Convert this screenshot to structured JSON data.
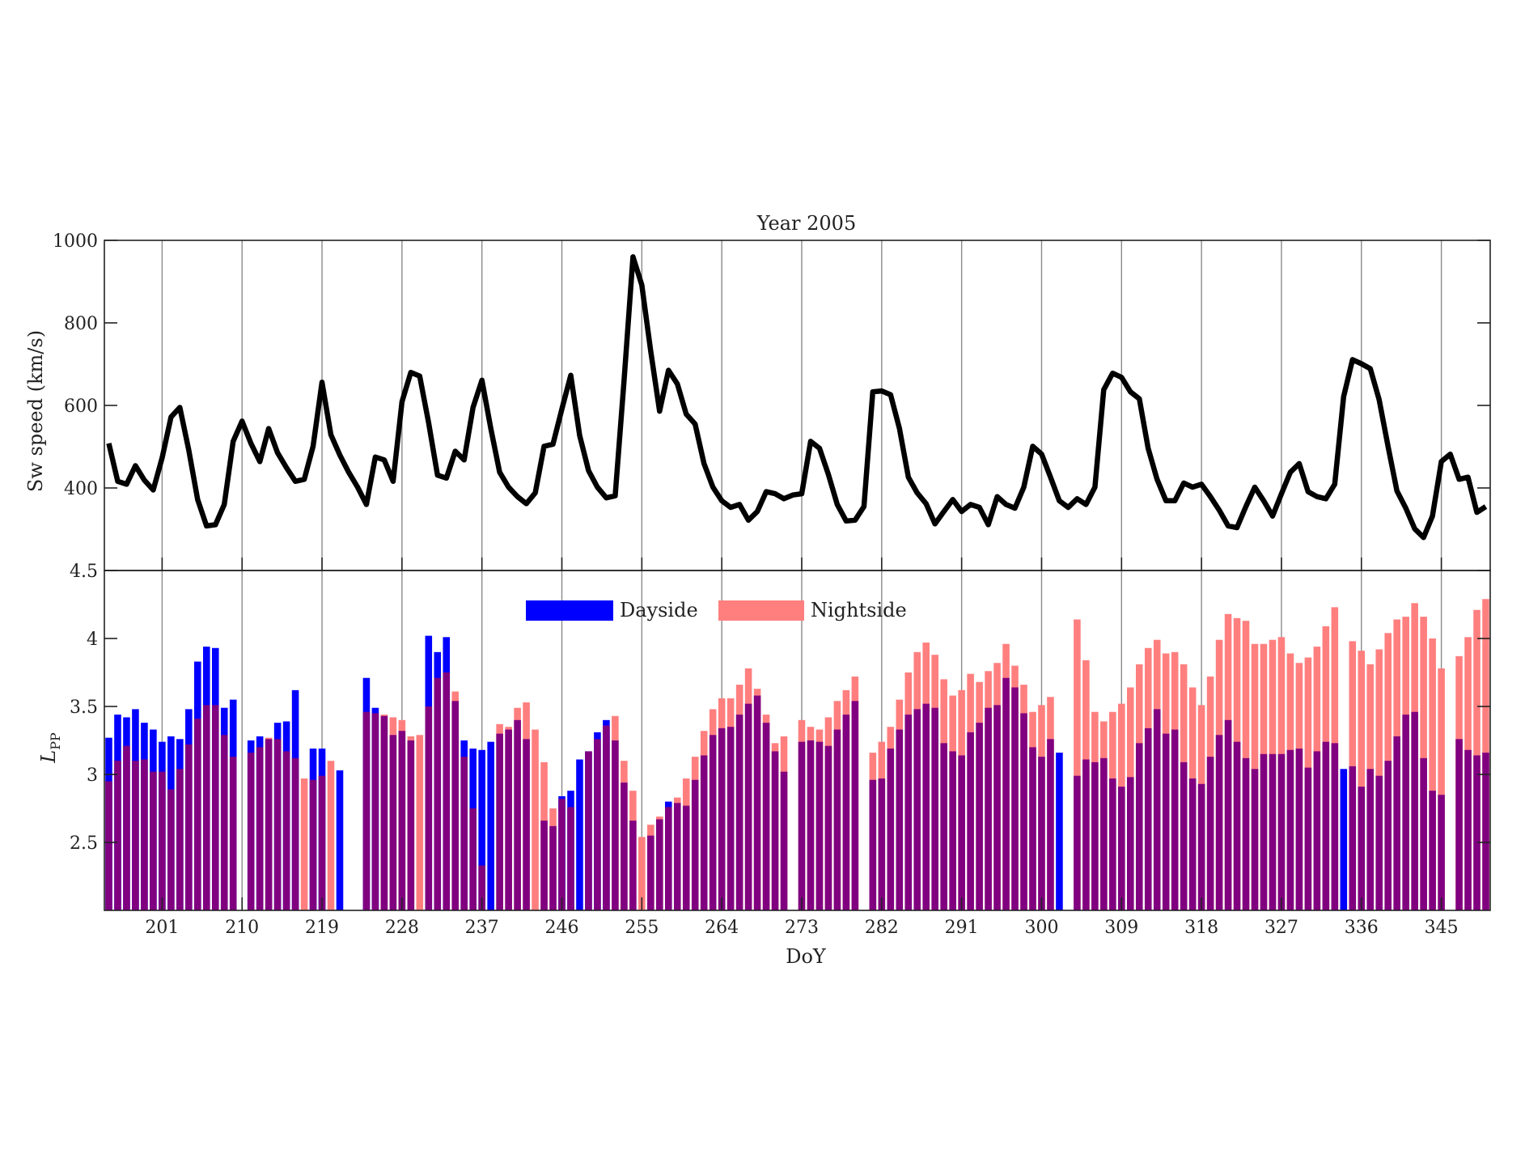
{
  "chart_data": [
    {
      "type": "line",
      "title": "Year 2005",
      "xlabel": "",
      "ylabel": "Sw speed (km/s)",
      "x_start": 195,
      "xlim": [
        194.5,
        350.5
      ],
      "ylim": [
        200,
        1000
      ],
      "yticks": [
        400,
        600,
        800,
        1000
      ],
      "xticks": [
        201,
        210,
        219,
        228,
        237,
        246,
        255,
        264,
        273,
        282,
        291,
        300,
        309,
        318,
        327,
        336,
        345
      ],
      "grid": true,
      "color": "#000000",
      "values": [
        508,
        416,
        409,
        454,
        419,
        395,
        473,
        572,
        595,
        492,
        372,
        308,
        311,
        360,
        513,
        562,
        508,
        464,
        544,
        485,
        449,
        416,
        421,
        501,
        656,
        529,
        480,
        438,
        402,
        360,
        475,
        468,
        416,
        609,
        680,
        671,
        558,
        431,
        424,
        489,
        468,
        595,
        661,
        544,
        438,
        402,
        379,
        362,
        388,
        501,
        506,
        591,
        673,
        527,
        442,
        402,
        376,
        381,
        661,
        960,
        892,
        732,
        586,
        685,
        652,
        579,
        555,
        459,
        402,
        369,
        353,
        360,
        322,
        343,
        391,
        386,
        374,
        383,
        386,
        513,
        496,
        433,
        360,
        320,
        322,
        355,
        633,
        635,
        626,
        544,
        426,
        388,
        362,
        313,
        343,
        372,
        343,
        360,
        353,
        311,
        379,
        360,
        351,
        402,
        501,
        482,
        426,
        369,
        353,
        374,
        360,
        402,
        638,
        678,
        668,
        633,
        616,
        496,
        421,
        369,
        369,
        412,
        402,
        409,
        379,
        346,
        308,
        304,
        355,
        402,
        369,
        332,
        386,
        438,
        459,
        391,
        379,
        374,
        409,
        621,
        711,
        701,
        689,
        614,
        501,
        393,
        351,
        301,
        280,
        332,
        464,
        482,
        421,
        426,
        341,
        355
      ]
    },
    {
      "type": "bar",
      "title": "",
      "xlabel": "DoY",
      "ylabel": "L",
      "ylabel_sub": "PP",
      "x_start": 195,
      "xlim": [
        194.5,
        350.5
      ],
      "ylim": [
        2,
        4.5
      ],
      "yticks": [
        2.5,
        3,
        3.5,
        4,
        4.5
      ],
      "ytick_labels": [
        "2.5",
        "3",
        "3.5",
        "4",
        "4.5"
      ],
      "xticks": [
        201,
        210,
        219,
        228,
        237,
        246,
        255,
        264,
        273,
        282,
        291,
        300,
        309,
        318,
        327,
        336,
        345
      ],
      "grid": true,
      "legend": "top-center",
      "overlap_color": "#800080",
      "series": [
        {
          "name": "Dayside",
          "color": "#0000ff",
          "values": [
            3.27,
            3.44,
            3.42,
            3.48,
            3.38,
            3.33,
            3.24,
            3.28,
            3.26,
            3.48,
            3.83,
            3.94,
            3.93,
            3.49,
            3.55,
            null,
            3.25,
            3.28,
            3.26,
            3.38,
            3.39,
            3.62,
            null,
            3.19,
            3.19,
            null,
            3.03,
            null,
            null,
            3.71,
            3.49,
            3.43,
            3.29,
            3.32,
            3.25,
            null,
            4.02,
            3.9,
            4.01,
            3.54,
            3.25,
            3.19,
            3.18,
            3.24,
            3.3,
            3.33,
            3.4,
            3.26,
            null,
            2.66,
            2.62,
            2.84,
            2.88,
            3.11,
            3.17,
            3.31,
            3.4,
            3.25,
            2.94,
            2.66,
            null,
            2.55,
            2.67,
            2.8,
            2.79,
            2.77,
            2.96,
            3.14,
            3.29,
            3.34,
            3.35,
            3.44,
            3.52,
            3.58,
            3.38,
            3.17,
            3.02,
            null,
            3.24,
            3.25,
            3.24,
            3.21,
            3.33,
            3.44,
            3.54,
            null,
            2.96,
            2.97,
            3.19,
            3.33,
            3.44,
            3.48,
            3.52,
            3.49,
            3.23,
            3.17,
            3.14,
            3.31,
            3.38,
            3.49,
            3.51,
            3.71,
            3.64,
            3.45,
            3.2,
            3.13,
            3.26,
            3.16,
            null,
            2.99,
            3.11,
            3.09,
            3.12,
            2.97,
            2.91,
            2.98,
            3.23,
            3.34,
            3.48,
            3.3,
            3.33,
            3.09,
            2.97,
            2.93,
            3.13,
            3.29,
            3.4,
            3.24,
            3.12,
            3.04,
            3.15,
            3.15,
            3.15,
            3.18,
            3.19,
            3.05,
            3.17,
            3.24,
            3.23,
            3.04,
            3.06,
            2.91,
            3.04,
            2.99,
            3.1,
            3.28,
            3.44,
            3.46,
            3.12,
            2.88,
            2.85,
            null,
            3.26,
            3.18,
            3.14,
            3.16
          ]
        },
        {
          "name": "Nightside",
          "color": "#ff7f7f",
          "values": [
            2.95,
            3.1,
            3.21,
            3.1,
            3.11,
            3.02,
            3.02,
            2.89,
            3.04,
            3.22,
            3.41,
            3.51,
            3.51,
            3.29,
            3.13,
            null,
            3.16,
            3.2,
            3.27,
            3.26,
            3.17,
            3.12,
            2.97,
            2.96,
            2.99,
            3.1,
            null,
            null,
            null,
            3.46,
            3.45,
            3.44,
            3.42,
            3.4,
            3.28,
            3.29,
            3.5,
            3.71,
            3.75,
            3.61,
            3.13,
            2.75,
            2.33,
            null,
            3.37,
            3.35,
            3.49,
            3.53,
            3.33,
            3.09,
            2.75,
            2.82,
            2.76,
            null,
            3.17,
            3.26,
            3.36,
            3.43,
            3.1,
            2.88,
            2.54,
            2.63,
            2.69,
            2.76,
            2.83,
            2.97,
            3.13,
            3.32,
            3.48,
            3.56,
            3.56,
            3.66,
            3.78,
            3.63,
            3.44,
            3.23,
            3.28,
            null,
            3.4,
            3.35,
            3.33,
            3.42,
            3.54,
            3.62,
            3.72,
            null,
            3.16,
            3.24,
            3.35,
            3.55,
            3.75,
            3.9,
            3.97,
            3.88,
            3.7,
            3.58,
            3.62,
            3.74,
            3.68,
            3.76,
            3.82,
            3.96,
            3.8,
            3.66,
            3.46,
            3.51,
            3.57,
            null,
            null,
            4.14,
            3.84,
            3.46,
            3.39,
            3.46,
            3.52,
            3.64,
            3.81,
            3.93,
            3.99,
            3.89,
            3.9,
            3.81,
            3.64,
            3.51,
            3.72,
            3.99,
            4.18,
            4.15,
            4.13,
            3.96,
            3.96,
            3.99,
            4.01,
            3.89,
            3.82,
            3.86,
            3.94,
            4.09,
            4.23,
            null,
            3.98,
            3.91,
            3.81,
            3.92,
            4.04,
            4.14,
            4.16,
            4.26,
            4.16,
            4.0,
            3.78,
            null,
            3.87,
            4.01,
            4.21,
            4.29
          ]
        }
      ]
    }
  ]
}
